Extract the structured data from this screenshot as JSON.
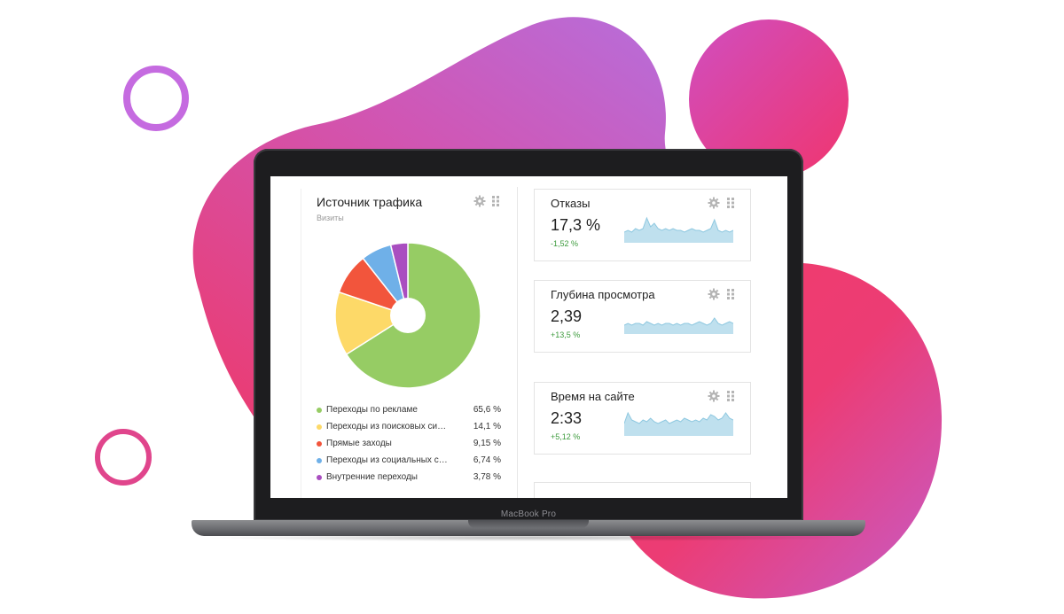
{
  "colors": {
    "blob_pink": "#e8336d",
    "blob_violet": "#b56bdf",
    "ring_violet": "#c56be0",
    "ring_pink": "#e0458c",
    "spark_fill": "#bfe0ee",
    "spark_line": "#8ec8e0",
    "delta_positive": "#3d9b3d"
  },
  "laptop": {
    "brand": "MacBook Pro"
  },
  "traffic": {
    "title": "Источник трафика",
    "subtitle": "Визиты",
    "settings_icon": "gear-icon",
    "drag_icon": "drag-handle-icon",
    "items": [
      {
        "label": "Переходы по рекламе",
        "value": "65,6 %",
        "share": 65.6,
        "color": "#96cc64"
      },
      {
        "label": "Переходы из поисковых систем",
        "value": "14,1 %",
        "share": 14.1,
        "color": "#fdd968"
      },
      {
        "label": "Прямые заходы",
        "value": "9,15 %",
        "share": 9.15,
        "color": "#f2553c"
      },
      {
        "label": "Переходы из социальных сетей",
        "value": "6,74 %",
        "share": 6.74,
        "color": "#6fb0e8"
      },
      {
        "label": "Внутренние переходы",
        "value": "3,78 %",
        "share": 3.78,
        "color": "#a94ec0"
      }
    ]
  },
  "metrics": [
    {
      "title": "Отказы",
      "value": "17,3 %",
      "delta": "-1,52 %",
      "trend": [
        6,
        7,
        6,
        8,
        7,
        8,
        14,
        9,
        11,
        8,
        7,
        8,
        7,
        8,
        7,
        7,
        6,
        7,
        8,
        7,
        7,
        6,
        7,
        8,
        13,
        7,
        6,
        7,
        6,
        7
      ]
    },
    {
      "title": "Глубина просмотра",
      "value": "2,39",
      "delta": "+13,5 %",
      "trend": [
        5,
        6,
        5,
        6,
        6,
        5,
        7,
        6,
        5,
        6,
        5,
        6,
        6,
        5,
        6,
        5,
        6,
        6,
        5,
        6,
        7,
        6,
        5,
        6,
        9,
        6,
        5,
        6,
        7,
        6
      ]
    },
    {
      "title": "Время на сайте",
      "value": "2:33",
      "delta": "+5,12 %",
      "trend": [
        7,
        13,
        9,
        8,
        7,
        9,
        8,
        10,
        8,
        7,
        8,
        9,
        7,
        8,
        9,
        8,
        10,
        9,
        8,
        9,
        8,
        10,
        9,
        12,
        11,
        9,
        10,
        13,
        10,
        9
      ]
    }
  ]
}
